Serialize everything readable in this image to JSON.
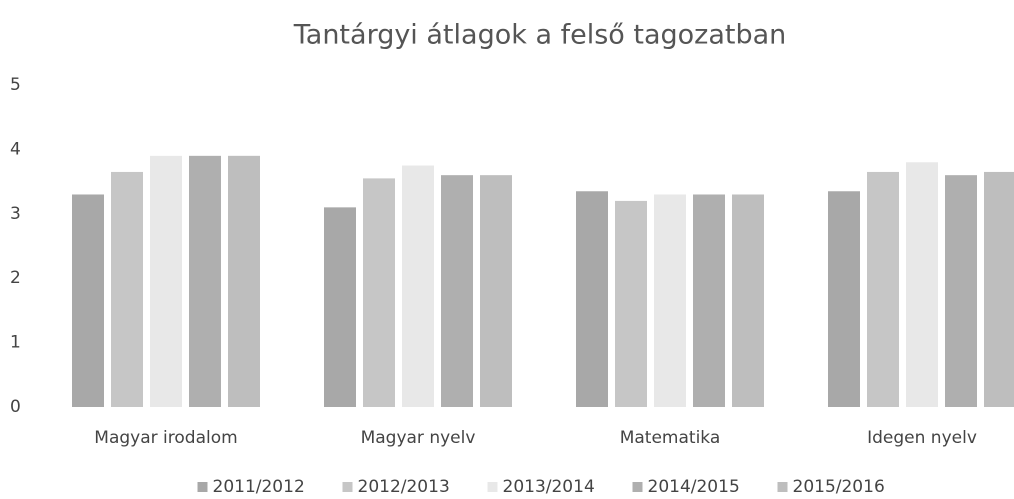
{
  "chart_data": {
    "type": "bar",
    "title": "Tantárgyi átlagok a felső tagozatban",
    "categories": [
      "Magyar irodalom",
      "Magyar nyelv",
      "Matematika",
      "Idegen nyelv"
    ],
    "series": [
      {
        "name": "2011/2012",
        "color": "#a8a8a8",
        "values": [
          3.3,
          3.1,
          3.35,
          3.35
        ]
      },
      {
        "name": "2012/2013",
        "color": "#c6c6c6",
        "values": [
          3.65,
          3.55,
          3.2,
          3.65
        ]
      },
      {
        "name": "2013/2014",
        "color": "#e8e8e8",
        "values": [
          3.9,
          3.75,
          3.3,
          3.8
        ]
      },
      {
        "name": "2014/2015",
        "color": "#afafaf",
        "values": [
          3.9,
          3.6,
          3.3,
          3.6
        ]
      },
      {
        "name": "2015/2016",
        "color": "#bebebe",
        "values": [
          3.9,
          3.6,
          3.3,
          3.65
        ]
      }
    ],
    "ylim": [
      0,
      5
    ],
    "yticks": [
      0,
      1,
      2,
      3,
      4,
      5
    ],
    "grid": false,
    "legend": "bottom"
  }
}
